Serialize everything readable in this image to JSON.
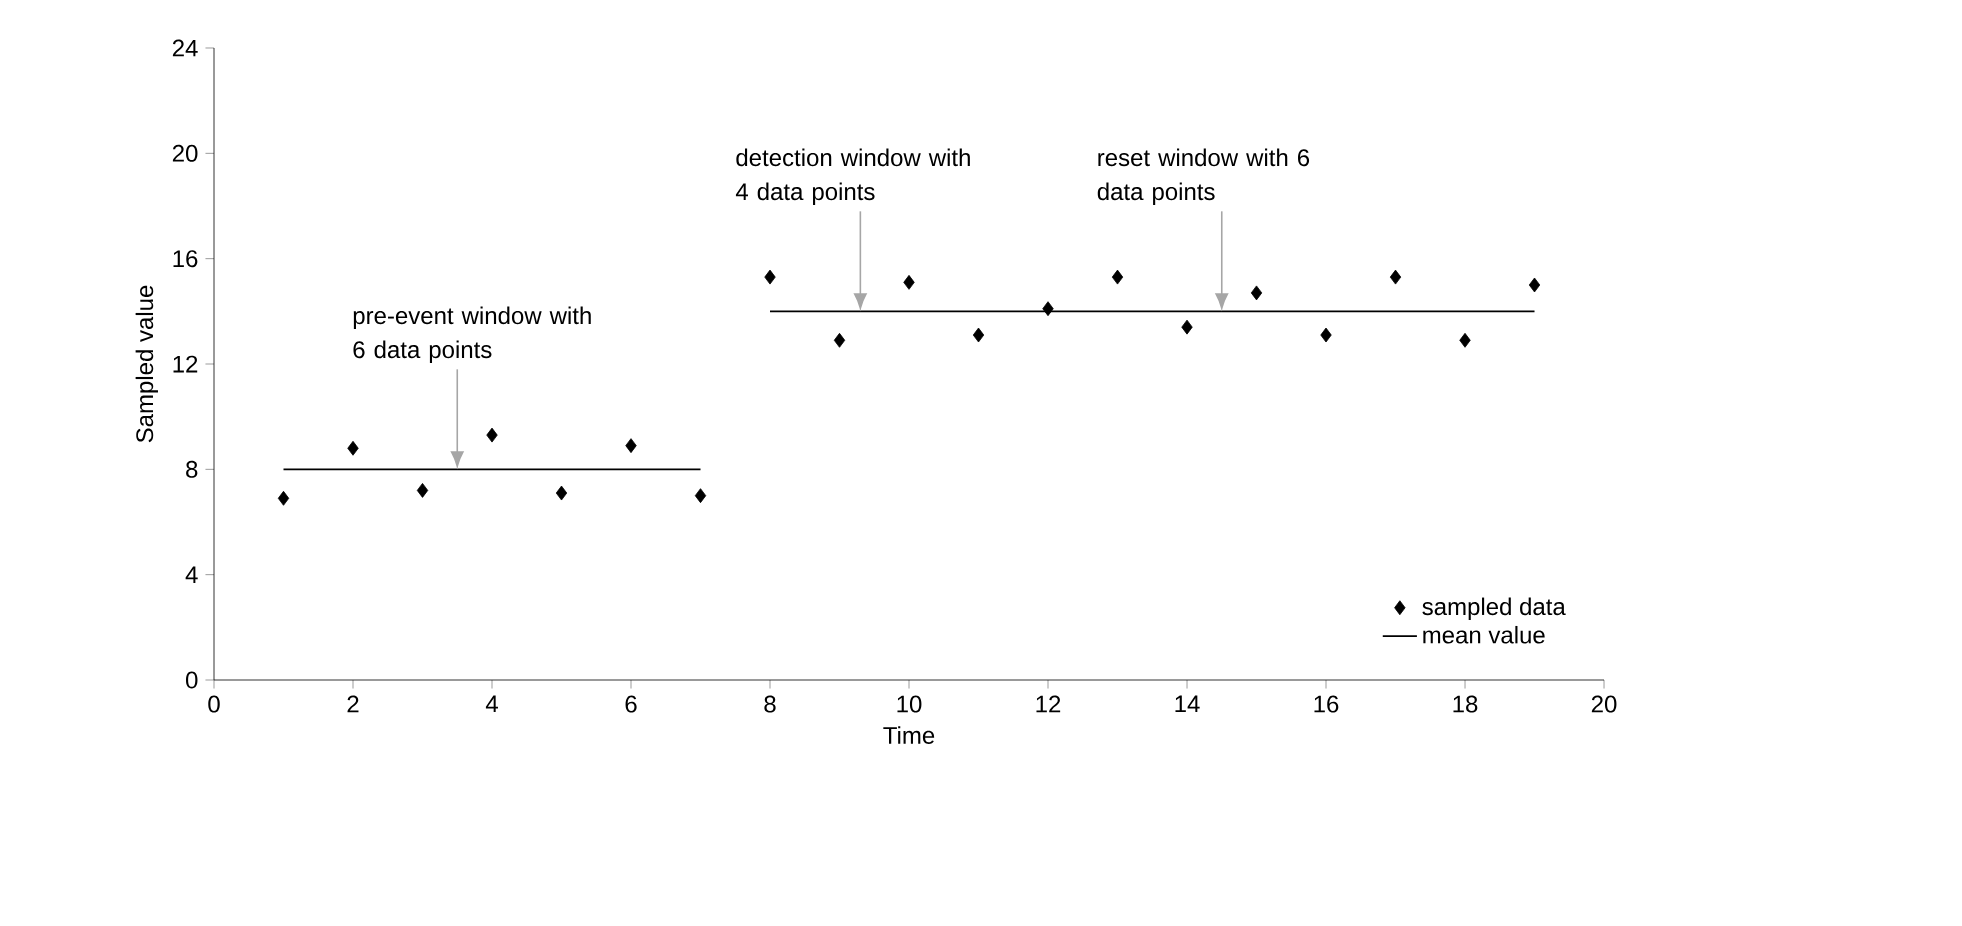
{
  "chart_data": {
    "type": "scatter",
    "xlabel": "Time",
    "ylabel": "Sampled value",
    "xlim": [
      0,
      20
    ],
    "ylim": [
      0,
      24
    ],
    "xticks": [
      0,
      2,
      4,
      6,
      8,
      10,
      12,
      14,
      16,
      18,
      20
    ],
    "yticks": [
      0,
      4,
      8,
      12,
      16,
      20,
      24
    ],
    "grid": false,
    "legend": "bottom right",
    "series": [
      {
        "name": "sampled data",
        "marker": "diamond",
        "color": "#000000",
        "x": [
          1,
          2,
          3,
          4,
          5,
          6,
          7,
          8,
          9,
          10,
          11,
          12,
          13,
          14,
          15,
          16,
          17,
          18,
          19
        ],
        "values": [
          6.9,
          8.8,
          7.2,
          9.3,
          7.1,
          8.9,
          7.0,
          15.3,
          12.9,
          15.1,
          13.1,
          14.1,
          15.3,
          13.4,
          14.7,
          13.1,
          15.3,
          12.9,
          15.0
        ]
      },
      {
        "name": "mean value",
        "type": "line",
        "marker": "none",
        "line_style": "solid",
        "color": "#000000",
        "x": [
          1,
          7,
          7.5,
          8,
          19
        ],
        "values": [
          8,
          8,
          null,
          14,
          14
        ]
      }
    ],
    "annotations": [
      {
        "text": "pre-event window with 6 data points",
        "x": 3.5,
        "y": 8
      },
      {
        "text": "detection window with 4 data points",
        "x": 9.3,
        "y": 14
      },
      {
        "text": "reset window with 6 data points",
        "x": 14.5,
        "y": 14
      }
    ]
  }
}
